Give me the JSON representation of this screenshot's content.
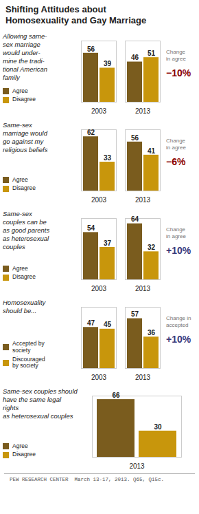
{
  "title": "Shifting Attitudes about\nHomosexuality and Gay Marriage",
  "caption": "PEW RESEARCH CENTER  March 13-17, 2013. Q65, Q15c.",
  "chart_data": [
    {
      "type": "bar",
      "title": "Allowing same-\nsex marriage\nwould under-\nmine the tradi-\ntional American\nfamily",
      "categories": [
        "2003",
        "2013"
      ],
      "series": [
        {
          "name": "Agree",
          "color": "#7a5c1e",
          "values": [
            56,
            46
          ]
        },
        {
          "name": "Disagree",
          "color": "#c8960c",
          "values": [
            39,
            51
          ]
        }
      ],
      "ylim": [
        0,
        70
      ],
      "grid": false,
      "data_labels": true,
      "tick_labels": "x",
      "annotations": [
        {
          "text": "Change\nin agree"
        },
        {
          "text": "−10%",
          "color": "#8B0000"
        }
      ]
    },
    {
      "type": "bar",
      "title": "Same-sex\nmarriage would\ngo against my\nreligious beliefs",
      "categories": [
        "2003",
        "2013"
      ],
      "series": [
        {
          "name": "Agree",
          "color": "#7a5c1e",
          "values": [
            62,
            56
          ]
        },
        {
          "name": "Disagree",
          "color": "#c8960c",
          "values": [
            33,
            41
          ]
        }
      ],
      "ylim": [
        0,
        70
      ],
      "grid": false,
      "data_labels": true,
      "tick_labels": "x",
      "annotations": [
        {
          "text": "Change\nin agree"
        },
        {
          "text": "−6%",
          "color": "#8B0000"
        }
      ]
    },
    {
      "type": "bar",
      "title": "Same-sex\ncouples can be\nas good parents\nas heterosexual\ncouples",
      "categories": [
        "2003",
        "2013"
      ],
      "series": [
        {
          "name": "Agree",
          "color": "#7a5c1e",
          "values": [
            54,
            64
          ]
        },
        {
          "name": "Disagree",
          "color": "#c8960c",
          "values": [
            37,
            32
          ]
        }
      ],
      "ylim": [
        0,
        70
      ],
      "grid": false,
      "data_labels": true,
      "tick_labels": "x",
      "annotations": [
        {
          "text": "Change\nin agree"
        },
        {
          "text": "+10%",
          "color": "#3a3a7a"
        }
      ]
    },
    {
      "type": "bar",
      "title": "Homosexuality\nshould be...",
      "categories": [
        "2003",
        "2013"
      ],
      "series": [
        {
          "name": "Accepted by\nsociety",
          "color": "#7a5c1e",
          "values": [
            47,
            57
          ]
        },
        {
          "name": "Discouraged\nby society",
          "color": "#c8960c",
          "values": [
            45,
            36
          ]
        }
      ],
      "ylim": [
        0,
        70
      ],
      "grid": false,
      "data_labels": true,
      "tick_labels": "x",
      "annotations": [
        {
          "text": "Change in\naccepted"
        },
        {
          "text": "+10%",
          "color": "#3a3a7a"
        }
      ]
    },
    {
      "type": "bar",
      "title": "Same-sex couples should\nhave the same legal rights\nas heterosexual couples",
      "categories": [
        "2013"
      ],
      "series": [
        {
          "name": "Agree",
          "color": "#7a5c1e",
          "values": [
            66
          ]
        },
        {
          "name": "Disagree",
          "color": "#c8960c",
          "values": [
            30
          ]
        }
      ],
      "ylim": [
        0,
        70
      ],
      "grid": false,
      "data_labels": true,
      "tick_labels": "x"
    }
  ]
}
